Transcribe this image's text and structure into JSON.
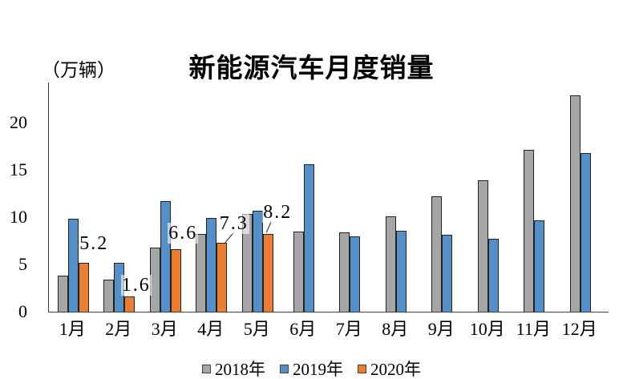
{
  "chart_data": {
    "type": "bar",
    "title": "新能源汽车月度销量",
    "unit_label": "（万辆）",
    "categories": [
      "1月",
      "2月",
      "3月",
      "4月",
      "5月",
      "6月",
      "7月",
      "8月",
      "9月",
      "10月",
      "11月",
      "12月"
    ],
    "series": [
      {
        "name": "2018年",
        "color": "#a6a6a6",
        "values": [
          3.8,
          3.4,
          6.8,
          8.2,
          10.3,
          8.5,
          8.4,
          10.1,
          12.2,
          13.9,
          17.1,
          22.9
        ]
      },
      {
        "name": "2019年",
        "color": "#548fc7",
        "values": [
          9.8,
          5.2,
          11.7,
          9.9,
          10.7,
          15.6,
          8.0,
          8.6,
          8.1,
          7.7,
          9.7,
          16.8
        ]
      },
      {
        "name": "2020年",
        "color": "#ed7d31",
        "values": [
          5.2,
          1.6,
          6.6,
          7.3,
          8.2,
          null,
          null,
          null,
          null,
          null,
          null,
          null
        ],
        "data_labels": [
          "5.2",
          "1.6",
          "6.6",
          "7.3",
          "8.2"
        ]
      }
    ],
    "yticks": [
      0,
      5,
      10,
      15,
      20
    ],
    "ylim": [
      0,
      24.2
    ],
    "grid": false,
    "legend_position": "bottom",
    "colors": {
      "axis": "#3f3f3f",
      "bar_border": "#222222",
      "text": "#000000",
      "label_background": "rgba(255,255,255,0.6)"
    }
  }
}
